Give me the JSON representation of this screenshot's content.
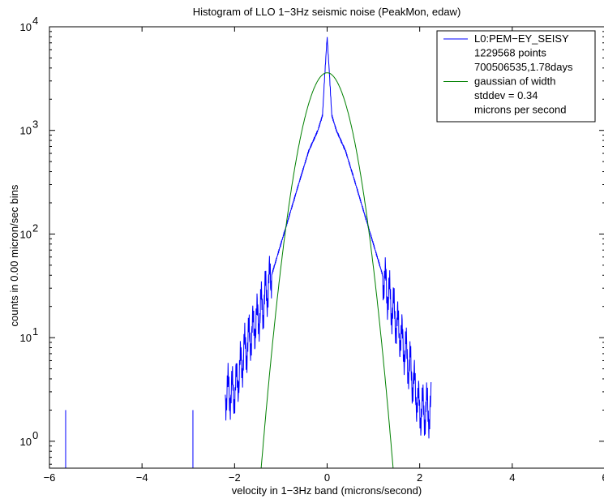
{
  "chart_data": {
    "type": "line",
    "title": "Histogram of LLO 1−3Hz seismic noise (PeakMon, edaw)",
    "xlabel": "velocity in 1−3Hz band (microns/second)",
    "ylabel": "counts in 0.00 micron/sec bins",
    "xlim": [
      -6,
      6
    ],
    "ylim": [
      0.55,
      10000
    ],
    "yscale": "log",
    "x_ticks": [
      -6,
      -4,
      -2,
      0,
      2,
      4,
      6
    ],
    "x_tick_labels": [
      "−6",
      "−4",
      "−2",
      "0",
      "2",
      "4",
      "6"
    ],
    "y_ticks": [
      1,
      10,
      100,
      1000,
      10000
    ],
    "y_tick_labels": [
      {
        "base": "10",
        "exp": "0"
      },
      {
        "base": "10",
        "exp": "1"
      },
      {
        "base": "10",
        "exp": "2"
      },
      {
        "base": "10",
        "exp": "3"
      },
      {
        "base": "10",
        "exp": "4"
      }
    ],
    "grid": false,
    "legend_position": "top-right",
    "legend": [
      {
        "series": "histogram",
        "lines": [
          "L0:PEM−EY_SEISY",
          "1229568 points",
          "700506535,1.78days"
        ]
      },
      {
        "series": "gaussian",
        "lines": [
          "gaussian of width",
          "stddev = 0.34",
          "microns per second"
        ]
      }
    ],
    "series": [
      {
        "key": "histogram",
        "color": "#0000ff",
        "x": [
          -5.65,
          -2.9,
          -2.0,
          -1.8,
          -1.6,
          -1.4,
          -1.2,
          -1.0,
          -0.8,
          -0.6,
          -0.4,
          -0.2,
          -0.1,
          -0.05,
          0.0,
          0.05,
          0.1,
          0.2,
          0.4,
          0.6,
          0.8,
          1.0,
          1.2,
          1.4,
          1.6,
          1.8,
          2.0,
          2.2
        ],
        "y": [
          2,
          2,
          3,
          7,
          12,
          20,
          40,
          80,
          160,
          320,
          630,
          1000,
          1400,
          3500,
          8000,
          3500,
          1400,
          1000,
          630,
          320,
          160,
          80,
          40,
          20,
          10,
          5,
          2,
          1
        ]
      },
      {
        "key": "gaussian",
        "color": "#008000",
        "stddev": 0.34,
        "peak": 3600,
        "x": [
          -1.4,
          -1.2,
          -1.0,
          -0.8,
          -0.6,
          -0.4,
          -0.2,
          0.0,
          0.2,
          0.4,
          0.6,
          0.8,
          1.0,
          1.2,
          1.4
        ],
        "y": [
          0.76,
          7.1,
          48.1,
          225,
          754,
          1804,
          3038,
          3600,
          3038,
          1804,
          754,
          225,
          48.1,
          7.1,
          0.76
        ]
      }
    ]
  }
}
